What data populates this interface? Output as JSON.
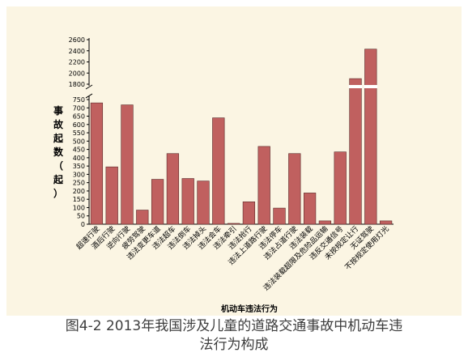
{
  "caption": {
    "line1": "图4-2 2013年我国涉及儿童的道路交通事故中机动车违",
    "line2": "法行为构成"
  },
  "chart_data": {
    "type": "bar",
    "bar_color": "#c0605f",
    "categories": [
      "超速行驶",
      "酒后行驶",
      "逆向行驶",
      "疲劳驾驶",
      "违法变更车道",
      "违法超车",
      "违法倒车",
      "违法掉头",
      "违法会车",
      "违法牵引",
      "违法抢行",
      "违法上道路行驶",
      "违法停车",
      "违法占道行驶",
      "违法装载",
      "违法装载超限及危险品运输",
      "违反交通信号",
      "未按规定让行",
      "无证驾驶",
      "不按规定使用灯光"
    ],
    "values": [
      730,
      345,
      718,
      85,
      270,
      425,
      275,
      260,
      640,
      5,
      135,
      468,
      97,
      425,
      188,
      20,
      435,
      1900,
      2430,
      20
    ],
    "ylabel_chars": [
      "事",
      "故",
      "起",
      "数",
      "（",
      "起",
      "）"
    ],
    "xlabel": "机动车违法行为",
    "axis_break": true,
    "y_ticks_lower": [
      0,
      50,
      100,
      150,
      200,
      250,
      300,
      350,
      400,
      450,
      500,
      550,
      600,
      650,
      700,
      750
    ],
    "y_ticks_upper": [
      1800,
      2000,
      2200,
      2400,
      2600
    ],
    "ylim_lower": [
      0,
      770
    ],
    "ylim_upper": [
      1800,
      2600
    ],
    "grid": false
  }
}
